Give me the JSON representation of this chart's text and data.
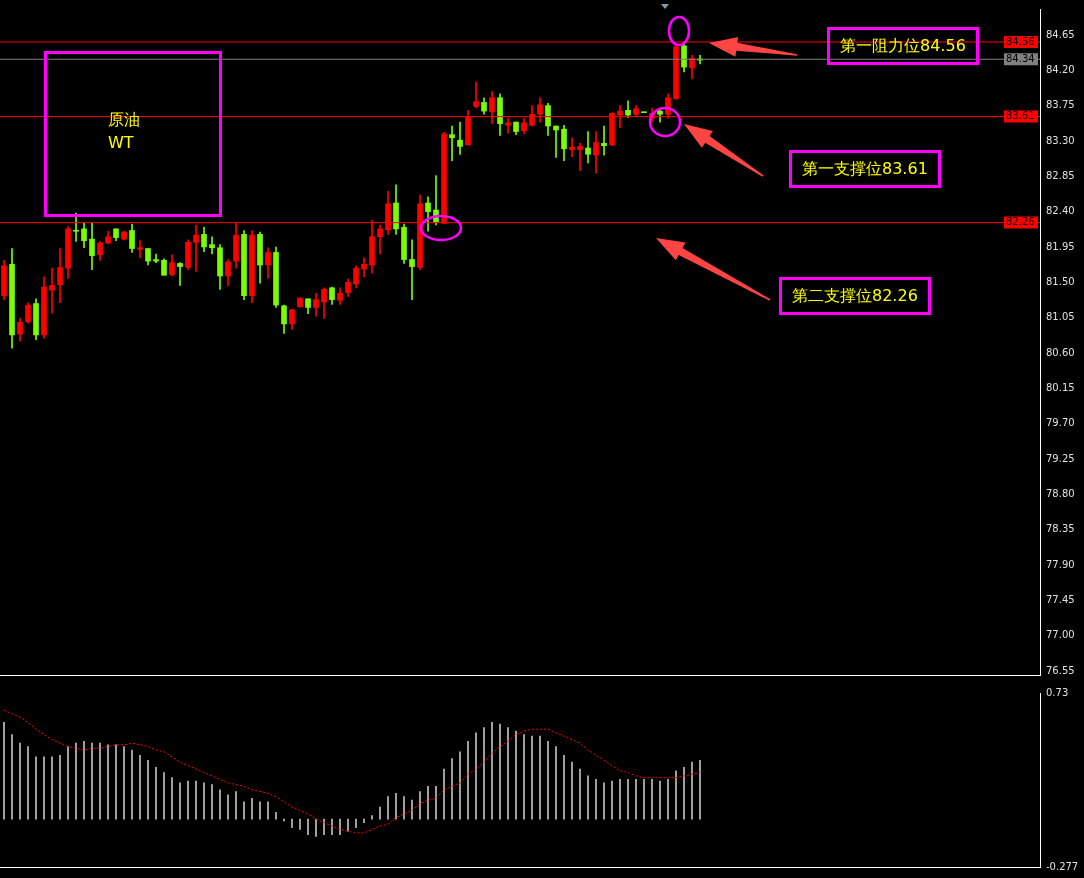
{
  "chart_data": [
    {
      "type": "candlestick",
      "categories": [
        null,
        null,
        null,
        null,
        null,
        null,
        null,
        null,
        null,
        null,
        null,
        null,
        null,
        null,
        null,
        null,
        null,
        null,
        null,
        null,
        null,
        null,
        null,
        null,
        null,
        null,
        null,
        null,
        null,
        null,
        null,
        null,
        null,
        null,
        null,
        null,
        null,
        null,
        null,
        null,
        null,
        null,
        null,
        null,
        null,
        null,
        null,
        null,
        null,
        null,
        null,
        null,
        null,
        null,
        null,
        null,
        null,
        null,
        null,
        null,
        null,
        null,
        null,
        null,
        null,
        null,
        null,
        null,
        null,
        null,
        null,
        null,
        null,
        null,
        null,
        null,
        null,
        null,
        null,
        null,
        null,
        null,
        null,
        null,
        null,
        null,
        null,
        null,
        null,
        null,
        null,
        null,
        null,
        null,
        null,
        null,
        null,
        null,
        null,
        null,
        null,
        null,
        null,
        null,
        null,
        null,
        null,
        null,
        null,
        null,
        null,
        null,
        null,
        null,
        null,
        null,
        null,
        null,
        null,
        null,
        null,
        null,
        null,
        null,
        null,
        null,
        null,
        null,
        null,
        null
      ],
      "ohlc": [
        [
          81.33,
          81.78,
          81.28,
          81.71
        ],
        [
          81.73,
          81.93,
          80.66,
          80.83
        ],
        [
          80.84,
          81.04,
          80.75,
          80.99
        ],
        [
          81.0,
          81.24,
          80.98,
          81.21
        ],
        [
          81.23,
          81.29,
          80.77,
          80.83
        ],
        [
          80.83,
          81.57,
          80.79,
          81.44
        ],
        [
          81.4,
          81.68,
          81.11,
          81.46
        ],
        [
          81.47,
          81.93,
          81.24,
          81.69
        ],
        [
          81.68,
          82.21,
          81.55,
          82.18
        ],
        [
          82.16,
          82.38,
          82.02,
          82.15
        ],
        [
          82.18,
          82.26,
          81.94,
          82.03
        ],
        [
          82.05,
          82.26,
          81.66,
          81.84
        ],
        [
          81.85,
          82.02,
          81.78,
          82.0
        ],
        [
          82.0,
          82.15,
          81.99,
          82.08
        ],
        [
          82.18,
          82.18,
          82.03,
          82.07
        ],
        [
          82.05,
          82.15,
          82.04,
          82.14
        ],
        [
          82.16,
          82.24,
          81.88,
          81.93
        ],
        [
          81.92,
          82.03,
          81.81,
          81.94
        ],
        [
          81.93,
          81.93,
          81.72,
          81.77
        ],
        [
          81.79,
          81.86,
          81.75,
          81.77
        ],
        [
          81.78,
          81.8,
          81.59,
          81.59
        ],
        [
          81.6,
          81.85,
          81.58,
          81.75
        ],
        [
          81.74,
          81.75,
          81.46,
          81.7
        ],
        [
          81.69,
          82.04,
          81.66,
          82.01
        ],
        [
          82.01,
          82.23,
          81.64,
          82.1
        ],
        [
          82.11,
          82.2,
          81.89,
          81.95
        ],
        [
          81.98,
          82.08,
          81.86,
          81.94
        ],
        [
          81.94,
          81.98,
          81.41,
          81.58
        ],
        [
          81.58,
          81.79,
          81.46,
          81.76
        ],
        [
          81.77,
          82.25,
          81.68,
          82.1
        ],
        [
          82.11,
          82.16,
          81.28,
          81.33
        ],
        [
          81.33,
          82.16,
          81.24,
          82.1
        ],
        [
          82.11,
          82.14,
          81.49,
          81.72
        ],
        [
          81.72,
          81.94,
          81.55,
          81.88
        ],
        [
          81.88,
          81.95,
          81.18,
          81.21
        ],
        [
          81.2,
          81.21,
          80.85,
          80.97
        ],
        [
          80.97,
          81.16,
          80.9,
          81.15
        ],
        [
          81.19,
          81.3,
          81.18,
          81.3
        ],
        [
          81.29,
          81.29,
          81.1,
          81.18
        ],
        [
          81.18,
          81.36,
          81.07,
          81.28
        ],
        [
          81.25,
          81.43,
          81.04,
          81.41
        ],
        [
          81.43,
          81.44,
          81.22,
          81.28
        ],
        [
          81.27,
          81.43,
          81.22,
          81.36
        ],
        [
          81.37,
          81.54,
          81.32,
          81.5
        ],
        [
          81.48,
          81.71,
          81.43,
          81.68
        ],
        [
          81.67,
          81.81,
          81.57,
          81.73
        ],
        [
          81.72,
          82.29,
          81.62,
          82.08
        ],
        [
          82.08,
          82.23,
          81.86,
          82.18
        ],
        [
          82.17,
          82.66,
          82.11,
          82.5
        ],
        [
          82.51,
          82.74,
          82.11,
          82.18
        ],
        [
          82.2,
          82.24,
          81.74,
          81.79
        ],
        [
          81.79,
          82.04,
          81.28,
          81.7
        ],
        [
          81.69,
          82.61,
          81.66,
          82.5
        ],
        [
          82.51,
          82.59,
          82.15,
          82.4
        ],
        [
          82.42,
          82.86,
          82.23,
          82.27
        ],
        [
          82.25,
          83.41,
          82.25,
          83.39
        ],
        [
          83.38,
          83.49,
          83.05,
          83.34
        ],
        [
          83.31,
          83.54,
          83.13,
          83.23
        ],
        [
          83.25,
          83.69,
          83.25,
          83.6
        ],
        [
          83.74,
          84.05,
          83.72,
          83.8
        ],
        [
          83.79,
          83.85,
          83.64,
          83.68
        ],
        [
          83.67,
          83.93,
          83.52,
          83.85
        ],
        [
          83.85,
          83.9,
          83.37,
          83.52
        ],
        [
          83.5,
          83.59,
          83.4,
          83.53
        ],
        [
          83.54,
          83.54,
          83.38,
          83.42
        ],
        [
          83.43,
          83.59,
          83.39,
          83.53
        ],
        [
          83.5,
          83.75,
          83.49,
          83.64
        ],
        [
          83.64,
          83.85,
          83.54,
          83.76
        ],
        [
          83.75,
          83.78,
          83.37,
          83.49
        ],
        [
          83.49,
          83.49,
          83.09,
          83.44
        ],
        [
          83.45,
          83.5,
          83.05,
          83.2
        ],
        [
          83.19,
          83.34,
          83.1,
          83.22
        ],
        [
          83.19,
          83.27,
          82.92,
          83.23
        ],
        [
          83.21,
          83.42,
          83.02,
          83.13
        ],
        [
          83.12,
          83.42,
          82.89,
          83.28
        ],
        [
          83.27,
          83.49,
          83.12,
          83.24
        ],
        [
          83.25,
          83.66,
          83.24,
          83.65
        ],
        [
          83.63,
          83.75,
          83.47,
          83.68
        ],
        [
          83.69,
          83.81,
          83.6,
          83.63
        ],
        [
          83.64,
          83.75,
          83.62,
          83.71
        ],
        [
          83.66,
          83.66,
          83.66,
          83.66
        ],
        [
          83.59,
          83.72,
          83.55,
          83.65
        ],
        [
          83.68,
          83.7,
          83.54,
          83.64
        ],
        [
          83.64,
          83.9,
          83.59,
          83.85
        ],
        [
          83.84,
          84.53,
          83.83,
          84.5
        ],
        [
          84.51,
          84.56,
          84.18,
          84.24
        ],
        [
          84.23,
          84.39,
          84.09,
          84.35
        ],
        [
          84.34,
          84.39,
          84.28,
          84.33
        ],
        null,
        null,
        null,
        null,
        null,
        null,
        null,
        null,
        null,
        null,
        null,
        null,
        null,
        null,
        null,
        null,
        null,
        null,
        null,
        null,
        null,
        null,
        null,
        null,
        null,
        null,
        null,
        null,
        null,
        null,
        null,
        null,
        null,
        null,
        null,
        null,
        null,
        null,
        null,
        null,
        null,
        null
      ],
      "colors": [
        "#ff0000",
        "#7cfc00",
        "#ff0000",
        "#ff0000",
        "#7cfc00",
        "#ff0000",
        "#ff0000",
        "#ff0000",
        "#ff0000",
        "#7cfc00",
        "#7cfc00",
        "#7cfc00",
        "#ff0000",
        "#ff0000",
        "#7cfc00",
        "#ff0000",
        "#7cfc00",
        "#ff0000",
        "#7cfc00",
        "#7cfc00",
        "#7cfc00",
        "#ff0000",
        "#7cfc00",
        "#ff0000",
        "#ff0000",
        "#7cfc00",
        "#7cfc00",
        "#7cfc00",
        "#ff0000",
        "#ff0000",
        "#7cfc00",
        "#ff0000",
        "#7cfc00",
        "#ff0000",
        "#7cfc00",
        "#7cfc00",
        "#ff0000",
        "#ff0000",
        "#7cfc00",
        "#ff0000",
        "#ff0000",
        "#7cfc00",
        "#ff0000",
        "#ff0000",
        "#ff0000",
        "#ff0000",
        "#ff0000",
        "#ff0000",
        "#ff0000",
        "#7cfc00",
        "#7cfc00",
        "#7cfc00",
        "#ff0000",
        "#7cfc00",
        "#7cfc00",
        "#ff0000",
        "#7cfc00",
        "#7cfc00",
        "#ff0000",
        "#ff0000",
        "#7cfc00",
        "#ff0000",
        "#7cfc00",
        "#ff0000",
        "#7cfc00",
        "#ff0000",
        "#ff0000",
        "#ff0000",
        "#7cfc00",
        "#7cfc00",
        "#7cfc00",
        "#ff0000",
        "#ff0000",
        "#7cfc00",
        "#ff0000",
        "#7cfc00",
        "#ff0000",
        "#ff0000",
        "#7cfc00",
        "#ff0000",
        "#7cfc00",
        "#ff0000",
        "#7cfc00",
        "#ff0000",
        "#ff0000",
        "#7cfc00",
        "#ff0000",
        "#7cfc00",
        null,
        null,
        null,
        null,
        null,
        null,
        null,
        null,
        null,
        null,
        null,
        null,
        null,
        null,
        null,
        null,
        null,
        null,
        null,
        null,
        null,
        null,
        null,
        null,
        null,
        null,
        null,
        null,
        null,
        null,
        null,
        null,
        null,
        null,
        null,
        null,
        null,
        null,
        null,
        null,
        null,
        null
      ],
      "ylim": [
        76.5,
        84.98
      ],
      "yticks": [
        76.55,
        {
          "value": 77,
          "label": "77.00"
        },
        77.45,
        {
          "value": 77.9,
          "label": "77.90"
        },
        78.35,
        {
          "value": 78.8,
          "label": "78.80"
        },
        79.25,
        {
          "value": 79.7,
          "label": "79.70"
        },
        80.15,
        {
          "value": 80.6,
          "label": "80.60"
        },
        81.05,
        {
          "value": 81.5,
          "label": "81.50"
        },
        81.95,
        {
          "value": 82.4,
          "label": "82.40"
        },
        82.85,
        {
          "value": 83.3,
          "label": "83.30"
        },
        83.75,
        {
          "value": 84.2,
          "label": "84.20"
        },
        84.65
      ],
      "ref_lines": [
        {
          "axis": "y",
          "value": 84.56,
          "label": "84.56",
          "color": "#ff0000"
        },
        {
          "axis": "y",
          "value": 84.34,
          "label": "84.34",
          "color": "#808080"
        },
        {
          "axis": "y",
          "value": 83.61,
          "label": "83.61",
          "color": "#ff0000"
        },
        {
          "axis": "y",
          "value": 82.26,
          "label": "82.26",
          "color": "#ff0000"
        }
      ],
      "annotations": [
        "原油",
        "WT",
        "第一阻力位84.56",
        "第一支撑位83.61",
        "第二支撑位82.26"
      ],
      "tick_labels": "y"
    },
    {
      "type": "bar",
      "categories": [
        null,
        null,
        null,
        null,
        null,
        null,
        null,
        null,
        null,
        null,
        null,
        null,
        null,
        null,
        null,
        null,
        null,
        null,
        null,
        null,
        null,
        null,
        null,
        null,
        null,
        null,
        null,
        null,
        null,
        null,
        null,
        null,
        null,
        null,
        null,
        null,
        null,
        null,
        null,
        null,
        null,
        null,
        null,
        null,
        null,
        null,
        null,
        null,
        null,
        null,
        null,
        null,
        null,
        null,
        null,
        null,
        null,
        null,
        null,
        null,
        null,
        null,
        null,
        null,
        null,
        null,
        null,
        null,
        null,
        null,
        null,
        null,
        null,
        null,
        null,
        null,
        null,
        null,
        null,
        null,
        null,
        null,
        null,
        null,
        null,
        null,
        null,
        null,
        null,
        null,
        null,
        null,
        null,
        null,
        null,
        null,
        null,
        null,
        null,
        null,
        null,
        null,
        null,
        null,
        null,
        null,
        null,
        null,
        null,
        null,
        null,
        null,
        null,
        null,
        null,
        null,
        null,
        null,
        null,
        null,
        null,
        null,
        null,
        null,
        null,
        null,
        null,
        null,
        null,
        null
      ],
      "series": [
        {
          "type": "bar",
          "color": "#c0c0c0",
          "values": [
            0.56,
            0.49,
            0.44,
            0.42,
            0.36,
            0.36,
            0.36,
            0.37,
            0.42,
            0.44,
            0.45,
            0.44,
            0.44,
            0.43,
            0.43,
            0.42,
            0.4,
            0.37,
            0.34,
            0.3,
            0.27,
            0.24,
            0.21,
            0.22,
            0.22,
            0.21,
            0.2,
            0.17,
            0.14,
            0.16,
            0.1,
            0.12,
            0.1,
            0.1,
            0.04,
            -0.01,
            -0.05,
            -0.06,
            -0.09,
            -0.1,
            -0.09,
            -0.09,
            -0.09,
            -0.07,
            -0.05,
            -0.02,
            0.02,
            0.07,
            0.13,
            0.15,
            0.13,
            0.11,
            0.16,
            0.19,
            0.19,
            0.29,
            0.35,
            0.39,
            0.45,
            0.5,
            0.53,
            0.56,
            0.55,
            0.53,
            0.51,
            0.49,
            0.48,
            0.48,
            0.45,
            0.42,
            0.37,
            0.33,
            0.29,
            0.25,
            0.23,
            0.21,
            0.22,
            0.23,
            0.23,
            0.23,
            0.23,
            0.23,
            0.22,
            0.23,
            0.28,
            0.3,
            0.33,
            0.34,
            null,
            null,
            null,
            null,
            null,
            null,
            null,
            null,
            null,
            null,
            null,
            null,
            null,
            null,
            null,
            null,
            null,
            null,
            null,
            null,
            null,
            null,
            null,
            null,
            null,
            null,
            null,
            null,
            null,
            null,
            null,
            null,
            null,
            null,
            null,
            null,
            null,
            null,
            null,
            null,
            null,
            null
          ]
        },
        {
          "type": "line",
          "color": "#ff0000",
          "line_style": "dotted",
          "marker": "none",
          "values": [
            0.63,
            0.61,
            0.59,
            0.56,
            0.52,
            0.49,
            0.46,
            0.44,
            0.42,
            0.41,
            0.4,
            0.41,
            0.41,
            0.42,
            0.43,
            0.43,
            0.44,
            0.43,
            0.42,
            0.4,
            0.39,
            0.36,
            0.33,
            0.31,
            0.29,
            0.27,
            0.25,
            0.23,
            0.21,
            0.2,
            0.19,
            0.17,
            0.16,
            0.15,
            0.13,
            0.1,
            0.07,
            0.05,
            0.03,
            0.0,
            -0.02,
            -0.04,
            -0.06,
            -0.07,
            -0.08,
            -0.08,
            -0.06,
            -0.04,
            -0.03,
            0.01,
            0.03,
            0.05,
            0.09,
            0.11,
            0.12,
            0.17,
            0.19,
            0.21,
            0.26,
            0.29,
            0.33,
            0.38,
            0.42,
            0.45,
            0.49,
            0.51,
            0.52,
            0.52,
            0.52,
            0.5,
            0.48,
            0.46,
            0.44,
            0.4,
            0.37,
            0.34,
            0.31,
            0.28,
            0.27,
            0.25,
            0.24,
            0.24,
            0.24,
            0.24,
            0.24,
            0.25,
            0.26,
            0.27,
            null,
            null,
            null,
            null,
            null,
            null,
            null,
            null,
            null,
            null,
            null,
            null,
            null,
            null,
            null,
            null,
            null,
            null,
            null,
            null,
            null,
            null,
            null,
            null,
            null,
            null,
            null,
            null,
            null,
            null,
            null,
            null,
            null,
            null,
            null,
            null,
            null,
            null,
            null,
            null,
            null,
            null
          ]
        }
      ],
      "ylim": [
        -0.277,
        0.73
      ],
      "yticks": [
        -0.277,
        0.73
      ],
      "tick_labels": "y"
    }
  ]
}
